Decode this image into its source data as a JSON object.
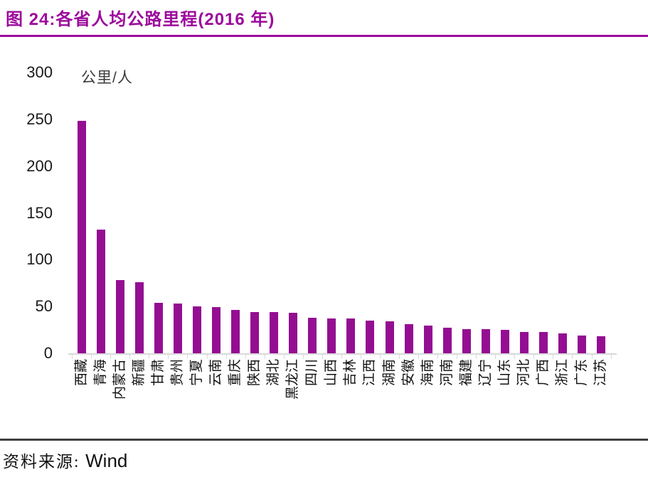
{
  "header": {
    "title": "图 24:各省人均公路里程(2016 年)"
  },
  "footer": {
    "source_label": "资料来源:",
    "source_value": "Wind"
  },
  "colors": {
    "accent": "#9C0A9C",
    "bar": "#940E92",
    "axis": "#D9D9D9"
  },
  "chart_data": {
    "type": "bar",
    "title": "图 24:各省人均公路里程(2016 年)",
    "unit_label": "公里/人",
    "xlabel": "",
    "ylabel": "公里/人",
    "ylim": [
      0,
      300
    ],
    "yticks": [
      0,
      50,
      100,
      150,
      200,
      250,
      300
    ],
    "grid": false,
    "legend": "none",
    "categories": [
      "西藏",
      "青海",
      "内蒙古",
      "新疆",
      "甘肃",
      "贵州",
      "宁夏",
      "云南",
      "重庆",
      "陕西",
      "湖北",
      "黑龙江",
      "四川",
      "山西",
      "吉林",
      "江西",
      "湖南",
      "安徽",
      "海南",
      "河南",
      "福建",
      "辽宁",
      "山东",
      "河北",
      "广西",
      "浙江",
      "广东",
      "江苏"
    ],
    "values": [
      248,
      132,
      78,
      76,
      54,
      53,
      50,
      49,
      46,
      44,
      44,
      43,
      38,
      37,
      37,
      35,
      34,
      31,
      30,
      27,
      26,
      26,
      25,
      23,
      23,
      21,
      19,
      18
    ]
  }
}
